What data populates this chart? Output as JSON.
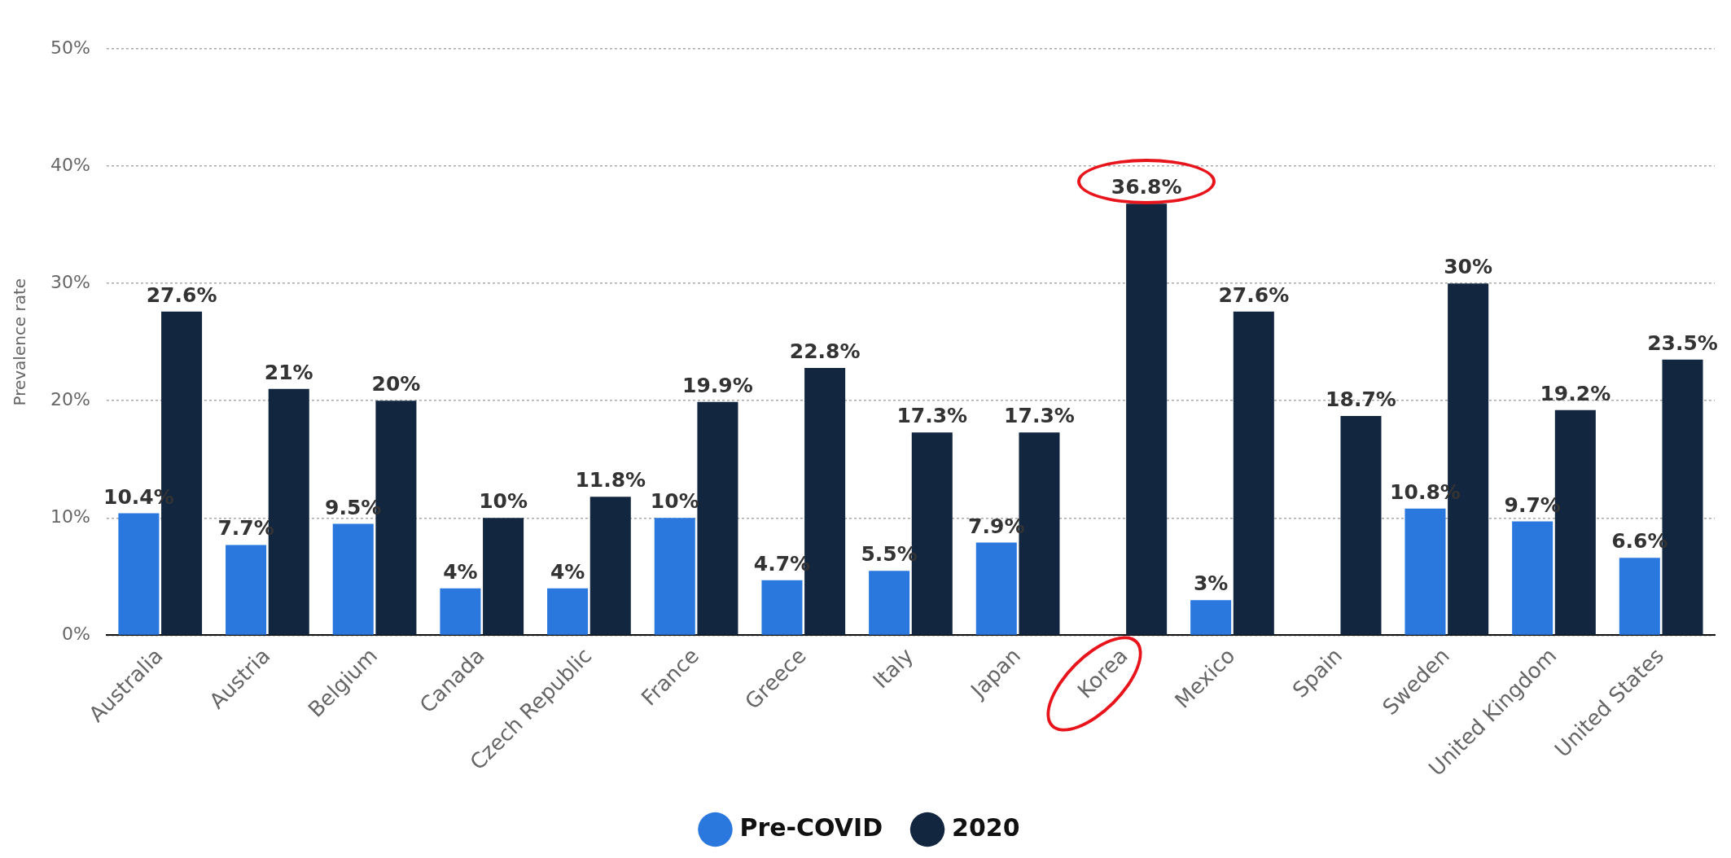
{
  "chart_data": {
    "type": "bar",
    "ylabel": "Prevalence rate",
    "categories": [
      "Australia",
      "Austria",
      "Belgium",
      "Canada",
      "Czech Republic",
      "France",
      "Greece",
      "Italy",
      "Japan",
      "Korea",
      "Mexico",
      "Spain",
      "Sweden",
      "United Kingdom",
      "United States"
    ],
    "series": [
      {
        "name": "Pre-COVID",
        "color": "#2a78de",
        "values": [
          10.4,
          7.7,
          9.5,
          4,
          4,
          10,
          4.7,
          5.5,
          7.9,
          null,
          3,
          null,
          10.8,
          9.7,
          6.6
        ],
        "value_labels": [
          "10.4%",
          "7.7%",
          "9.5%",
          "4%",
          "4%",
          "10%",
          "4.7%",
          "5.5%",
          "7.9%",
          null,
          "3%",
          null,
          "10.8%",
          "9.7%",
          "6.6%"
        ]
      },
      {
        "name": "2020",
        "color": "#12263f",
        "values": [
          27.6,
          21,
          20,
          10,
          11.8,
          19.9,
          22.8,
          17.3,
          17.3,
          36.8,
          27.6,
          18.7,
          30,
          19.2,
          23.5
        ],
        "value_labels": [
          "27.6%",
          "21%",
          "20%",
          "10%",
          "11.8%",
          "19.9%",
          "22.8%",
          "17.3%",
          "17.3%",
          "36.8%",
          "27.6%",
          "18.7%",
          "30%",
          "19.2%",
          "23.5%"
        ]
      }
    ],
    "ylim": [
      0,
      50
    ],
    "yticks": [
      {
        "value": 0,
        "label": "0%"
      },
      {
        "value": 10,
        "label": "10%"
      },
      {
        "value": 20,
        "label": "20%"
      },
      {
        "value": 30,
        "label": "30%"
      },
      {
        "value": 40,
        "label": "40%"
      },
      {
        "value": 50,
        "label": "50%"
      }
    ],
    "grid": "y",
    "legend": "bottom",
    "marker": "circle"
  }
}
